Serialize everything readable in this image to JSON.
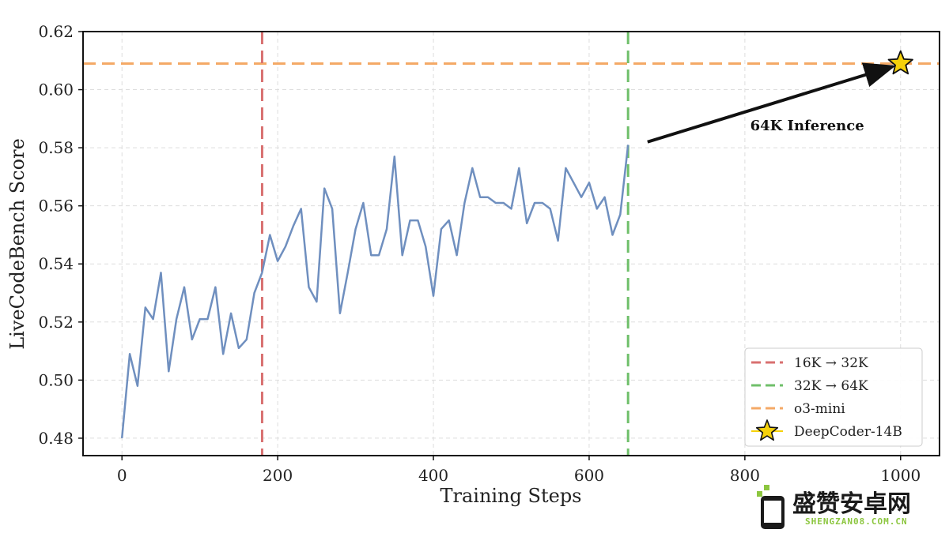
{
  "chart_data": {
    "type": "line",
    "xlabel": "Training Steps",
    "ylabel": "LiveCodeBench Score",
    "xlim": [
      -50,
      1050
    ],
    "ylim": [
      0.474,
      0.62
    ],
    "xticks": [
      0,
      200,
      400,
      600,
      800,
      1000
    ],
    "yticks": [
      0.48,
      0.5,
      0.52,
      0.54,
      0.56,
      0.58,
      0.6,
      0.62
    ],
    "xtick_labels": [
      "0",
      "200",
      "400",
      "600",
      "800",
      "1000"
    ],
    "ytick_labels": [
      "0.48",
      "0.50",
      "0.52",
      "0.54",
      "0.56",
      "0.58",
      "0.60",
      "0.62"
    ],
    "grid": true,
    "legend_position": "bottom-right",
    "series": [
      {
        "color": "#6f8fbf",
        "x": [
          0,
          10,
          20,
          30,
          40,
          50,
          60,
          70,
          80,
          90,
          100,
          110,
          120,
          130,
          140,
          150,
          160,
          170,
          180,
          190,
          200,
          210,
          220,
          230,
          240,
          250,
          260,
          270,
          280,
          290,
          300,
          310,
          320,
          330,
          340,
          350,
          360,
          370,
          380,
          390,
          400,
          410,
          420,
          430,
          440,
          450,
          460,
          470,
          480,
          490,
          500,
          510,
          520,
          530,
          540,
          550,
          560,
          570,
          580,
          590,
          600,
          610,
          620,
          630,
          640,
          650
        ],
        "y": [
          0.48,
          0.509,
          0.498,
          0.525,
          0.521,
          0.537,
          0.503,
          0.521,
          0.532,
          0.514,
          0.521,
          0.521,
          0.532,
          0.509,
          0.523,
          0.511,
          0.514,
          0.53,
          0.537,
          0.55,
          0.541,
          0.546,
          0.553,
          0.559,
          0.532,
          0.527,
          0.566,
          0.559,
          0.523,
          0.537,
          0.552,
          0.561,
          0.543,
          0.543,
          0.552,
          0.577,
          0.543,
          0.555,
          0.555,
          0.546,
          0.529,
          0.552,
          0.555,
          0.543,
          0.561,
          0.573,
          0.563,
          0.563,
          0.561,
          0.561,
          0.559,
          0.573,
          0.554,
          0.561,
          0.561,
          0.559,
          0.548,
          0.573,
          0.568,
          0.563,
          0.568,
          0.559,
          0.563,
          0.55,
          0.557,
          0.581
        ]
      }
    ],
    "vlines": [
      {
        "x": 180,
        "label": "16K → 32K",
        "color": "#d87070"
      },
      {
        "x": 650,
        "label": "32K → 64K",
        "color": "#6fbf6a"
      }
    ],
    "hlines": [
      {
        "y": 0.609,
        "label": "o3-mini",
        "color": "#f4a966"
      }
    ],
    "points": [
      {
        "x": 1000,
        "y": 0.609,
        "label": "DeepCoder-14B",
        "color": "#f5d10a",
        "marker": "star"
      }
    ],
    "annotations": [
      {
        "text": "64K Inference",
        "arrow_from": [
          675,
          0.582
        ],
        "arrow_to": [
          990,
          0.608
        ],
        "text_at": [
          880,
          0.586
        ]
      }
    ]
  },
  "watermark": {
    "title": "盛赞安卓网",
    "url": "SHENGZAN08.COM.CN"
  }
}
